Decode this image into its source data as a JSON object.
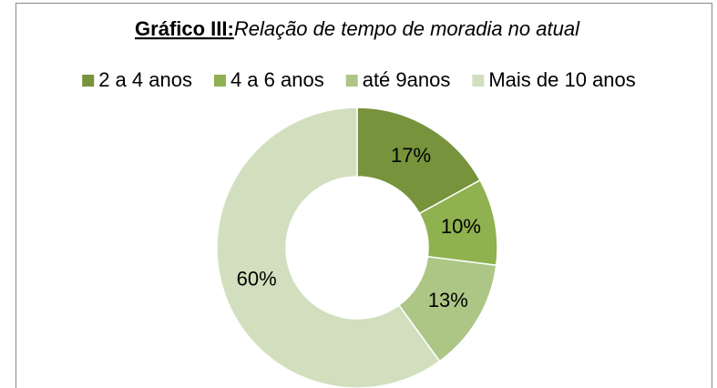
{
  "chart_data": {
    "type": "pie",
    "title": [
      "Gráfico III:",
      "Relação de tempo de moradia no atual"
    ],
    "categories": [
      "2 a 4 anos",
      "4 a 6 anos",
      "até 9anos",
      "Mais de 10 anos"
    ],
    "values": [
      17,
      10,
      13,
      60
    ],
    "value_labels": [
      "17%",
      "10%",
      "13%",
      "60%"
    ],
    "colors": [
      "#77933c",
      "#8fb14f",
      "#adc686",
      "#d2dfbf"
    ],
    "donut": true,
    "legend": "top"
  }
}
